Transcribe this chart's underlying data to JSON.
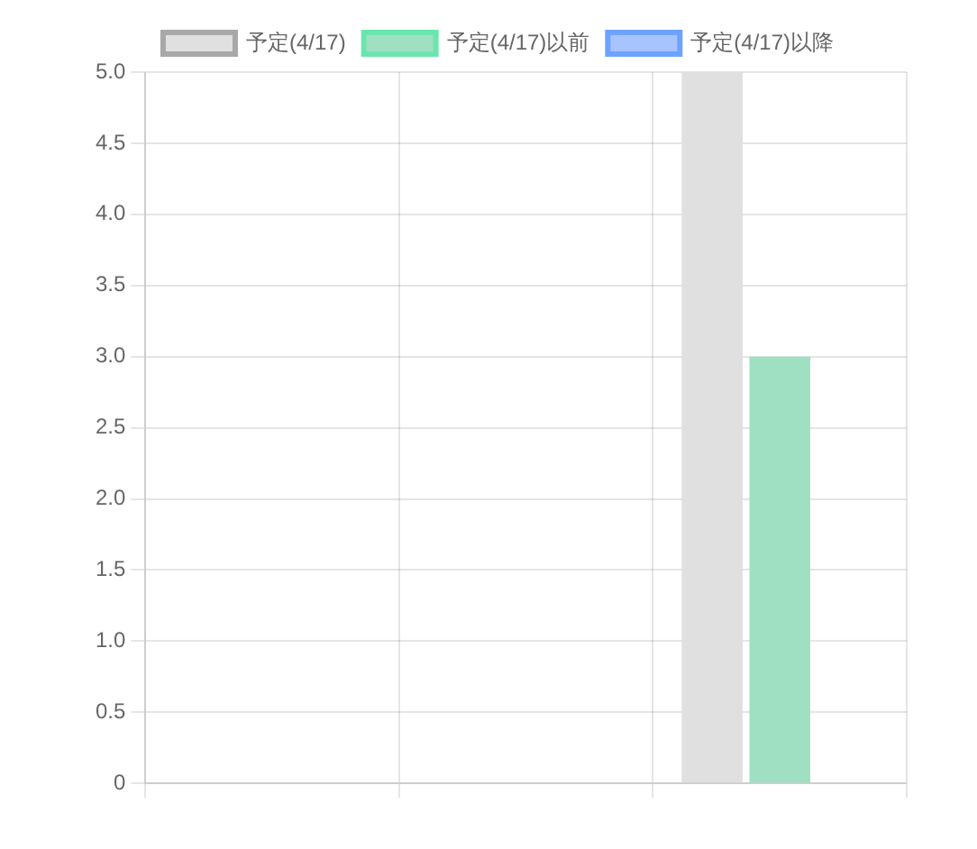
{
  "chart_data": {
    "type": "bar",
    "categories": [
      null,
      null,
      null
    ],
    "series": [
      {
        "name": "予定(4/17)",
        "color": "#e0e0e0",
        "values": [
          0,
          0,
          5
        ]
      },
      {
        "name": "予定(4/17)以前",
        "color": "#9fe0c2",
        "values": [
          0,
          0,
          3
        ]
      },
      {
        "name": "予定(4/17)以降",
        "color": "#a8c4fc",
        "values": [
          0,
          0,
          0
        ]
      }
    ],
    "ylim": [
      0,
      5
    ],
    "yticks": [
      0,
      0.5,
      {
        "value": 1,
        "label": "1.0"
      },
      1.5,
      {
        "value": 2,
        "label": "2.0"
      },
      2.5,
      {
        "value": 3,
        "label": "3.0"
      },
      3.5,
      {
        "value": 4,
        "label": "4.0"
      },
      4.5,
      {
        "value": 5,
        "label": "5.0"
      }
    ],
    "grid": true,
    "legend": "top"
  }
}
